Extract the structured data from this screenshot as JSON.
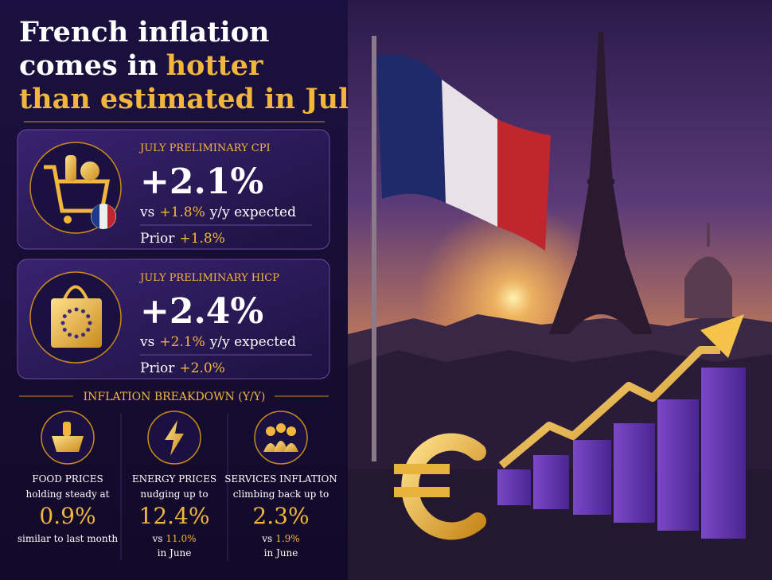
{
  "title": {
    "line1": "French inflation",
    "line2": "comes in",
    "line2_highlight": "hotter",
    "line3": "than estimated in July"
  },
  "cards": [
    {
      "label": "JULY PRELIMINARY CPI",
      "value": "+2.1%",
      "vs": "vs",
      "expected": "+1.8%",
      "expected_suffix": "y/y expected",
      "prior_label": "Prior",
      "prior": "+1.8%"
    },
    {
      "label": "JULY PRELIMINARY HICP",
      "value": "+2.4%",
      "vs": "vs",
      "expected": "+2.1%",
      "expected_suffix": "y/y expected",
      "prior_label": "Prior",
      "prior": "+2.0%"
    }
  ],
  "breakdown": {
    "heading": "INFLATION BREAKDOWN (Y/Y)",
    "items": [
      {
        "label": "FOOD PRICES",
        "description": "holding steady at",
        "value": "0.9%",
        "note": "similar to last month"
      },
      {
        "label": "ENERGY PRICES",
        "description": "nudging up to",
        "value": "12.4%",
        "note_prefix": "vs",
        "note_value": "11.0%",
        "note_suffix": "in June"
      },
      {
        "label": "SERVICES INFLATION",
        "description": "climbing back up to",
        "value": "2.3%",
        "note_prefix": "vs",
        "note_value": "1.9%",
        "note_suffix": "in June"
      }
    ]
  }
}
